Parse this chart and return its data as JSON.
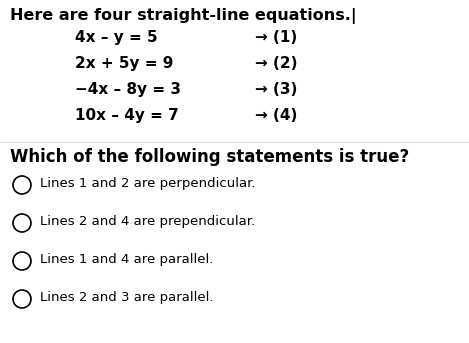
{
  "title": "Here are four straight-line equations.|",
  "equations": [
    {
      "eq": "4x – y = 5",
      "num": "→ (1)"
    },
    {
      "eq": "2x + 5y = 9",
      "num": "→ (2)"
    },
    {
      "eq": "−4x – 8y = 3",
      "num": "→ (3)"
    },
    {
      "eq": "10x – 4y = 7",
      "num": "→ (4)"
    }
  ],
  "question": "Which of the following statements is true?",
  "options": [
    "Lines 1 and 2 are perpendicular.",
    "Lines 2 and 4 are prependicular.",
    "Lines 1 and 4 are parallel.",
    "Lines 2 and 3 are parallel."
  ],
  "bg_color": "#ffffff",
  "text_color": "#000000",
  "title_fontsize": 11.5,
  "eq_fontsize": 11.0,
  "question_fontsize": 12.0,
  "option_fontsize": 9.5,
  "fig_width": 4.69,
  "fig_height": 3.43,
  "dpi": 100
}
